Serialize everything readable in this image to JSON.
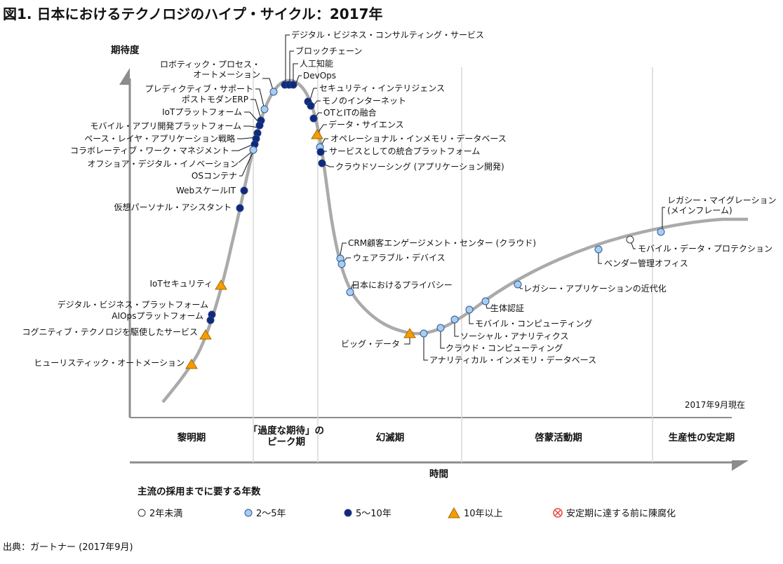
{
  "title": "図1. 日本におけるテクノロジのハイプ・サイクル：2017年",
  "axes": {
    "y_label": "期待度",
    "x_label": "時間"
  },
  "as_of": "2017年9月現在",
  "phases": [
    "黎明期",
    "「過度な期待」の\nピーク期",
    "幻滅期",
    "啓蒙活動期",
    "生産性の安定期"
  ],
  "legend": {
    "title": "主流の採用までに要する年数",
    "items": [
      {
        "key": "lt2",
        "label": "2年未満"
      },
      {
        "key": "2to5",
        "label": "2〜5年"
      },
      {
        "key": "5to10",
        "label": "5〜10年"
      },
      {
        "key": "gt10",
        "label": "10年以上"
      },
      {
        "key": "obsolete",
        "label": "安定期に達する前に陳腐化"
      }
    ]
  },
  "source": "出典：ガートナー (2017年9月)",
  "colors": {
    "curve": "#aaaaaa",
    "lt2": "#ffffff",
    "2to5": "#a9cdee",
    "5to10": "#0d2a80",
    "gt10": "#f49c00",
    "obsolete": "#e8423b"
  },
  "technologies": [
    {
      "name": "デジタル・ビジネス・コンサルティング・サービス",
      "timeline": "5to10"
    },
    {
      "name": "ブロックチェーン",
      "timeline": "5to10"
    },
    {
      "name": "人工知能",
      "timeline": "5to10"
    },
    {
      "name": "ロボティック・プロセス・\nオートメーション",
      "timeline": "2to5"
    },
    {
      "name": "DevOps",
      "timeline": "5to10"
    },
    {
      "name": "プレディクティブ・サポート",
      "timeline": "2to5"
    },
    {
      "name": "セキュリティ・インテリジェンス",
      "timeline": "5to10"
    },
    {
      "name": "ポストモダンERP",
      "timeline": "5to10"
    },
    {
      "name": "モノのインターネット",
      "timeline": "5to10"
    },
    {
      "name": "IoTプラットフォーム",
      "timeline": "5to10"
    },
    {
      "name": "OTとITの融合",
      "timeline": "5to10"
    },
    {
      "name": "モバイル・アプリ開発プラットフォーム",
      "timeline": "5to10"
    },
    {
      "name": "データ・サイエンス",
      "timeline": "gt10"
    },
    {
      "name": "ペース・レイヤ・アプリケーション戦略",
      "timeline": "5to10"
    },
    {
      "name": "オペレーショナル・インメモリ・データベース",
      "timeline": "2to5"
    },
    {
      "name": "コラボレーティブ・ワーク・マネジメント",
      "timeline": "5to10"
    },
    {
      "name": "サービスとしての統合プラットフォーム",
      "timeline": "5to10"
    },
    {
      "name": "オフショア・デジタル・イノベーション",
      "timeline": "2to5"
    },
    {
      "name": "クラウドソーシング (アプリケーション開発)",
      "timeline": "5to10"
    },
    {
      "name": "OSコンテナ",
      "timeline": "2to5"
    },
    {
      "name": "WebスケールIT",
      "timeline": "5to10"
    },
    {
      "name": "仮想パーソナル・アシスタント",
      "timeline": "5to10"
    },
    {
      "name": "レガシー・マイグレーション\n(メインフレーム)",
      "timeline": "2to5"
    },
    {
      "name": "CRM顧客エンゲージメント・センター (クラウド)",
      "timeline": "2to5"
    },
    {
      "name": "モバイル・データ・プロテクション",
      "timeline": "lt2"
    },
    {
      "name": "ウェアラブル・デバイス",
      "timeline": "2to5"
    },
    {
      "name": "ベンダー管理オフィス",
      "timeline": "2to5"
    },
    {
      "name": "IoTセキュリティ",
      "timeline": "gt10"
    },
    {
      "name": "日本におけるプライバシー",
      "timeline": "2to5"
    },
    {
      "name": "レガシー・アプリケーションの近代化",
      "timeline": "2to5"
    },
    {
      "name": "デジタル・ビジネス・プラットフォーム",
      "timeline": "5to10"
    },
    {
      "name": "生体認証",
      "timeline": "2to5"
    },
    {
      "name": "AIOpsプラットフォーム",
      "timeline": "5to10"
    },
    {
      "name": "モバイル・コンピューティング",
      "timeline": "2to5"
    },
    {
      "name": "コグニティブ・テクノロジを駆使したサービス",
      "timeline": "gt10"
    },
    {
      "name": "ソーシャル・アナリティクス",
      "timeline": "2to5"
    },
    {
      "name": "ビッグ・データ",
      "timeline": "gt10"
    },
    {
      "name": "クラウド・コンピューティング",
      "timeline": "2to5"
    },
    {
      "name": "ヒューリスティック・オートメーション",
      "timeline": "gt10"
    },
    {
      "name": "アナリティカル・インメモリ・データベース",
      "timeline": "2to5"
    }
  ]
}
